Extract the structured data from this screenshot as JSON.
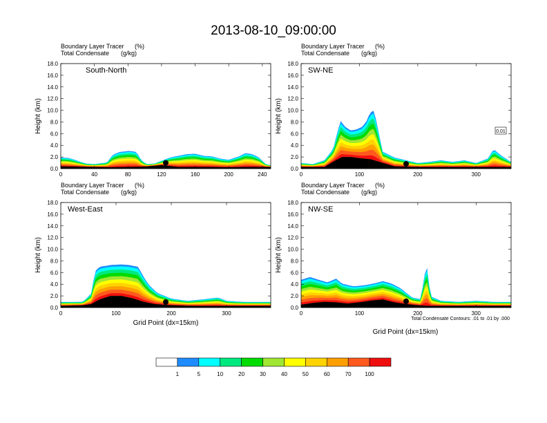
{
  "figure_title": "2013-08-10_09:00:00",
  "field_titles": {
    "tracer": "Boundary Layer Tracer",
    "tracer_unit": "(%)",
    "condensate": "Total Condensate",
    "condensate_unit": "(g/kg)"
  },
  "y_axis_label": "Height (km)",
  "x_axis_label": "Grid Point (dx=15km)",
  "contour_note": "Total Condensate Contours: .01 to .01 by .000",
  "contour_box_label": "0.01",
  "colorbar": {
    "colors": [
      "#ffffff",
      "#1e8cff",
      "#00ffff",
      "#00e97f",
      "#00dc00",
      "#a0e632",
      "#ffff00",
      "#ffd300",
      "#ffa000",
      "#ff5a1e",
      "#f00f0f"
    ],
    "labels": [
      "1",
      "5",
      "10",
      "20",
      "30",
      "40",
      "50",
      "60",
      "70",
      "100"
    ]
  },
  "chart_data": [
    {
      "type": "heatmap",
      "panel_label": "South-North",
      "xlim": [
        0,
        250
      ],
      "ylim": [
        0,
        18
      ],
      "xticks": [
        "0",
        "40",
        "80",
        "120",
        "160",
        "200",
        "240"
      ],
      "yticks": [
        "0.0",
        "2.0",
        "4.0",
        "6.0",
        "8.0",
        "10.0",
        "12.0",
        "14.0",
        "16.0",
        "18.0"
      ],
      "terrain_km": [
        [
          0,
          0.4
        ],
        [
          20,
          0.35
        ],
        [
          40,
          0.3
        ],
        [
          60,
          0.25
        ],
        [
          80,
          0.3
        ],
        [
          100,
          0.35
        ],
        [
          120,
          0.6
        ],
        [
          140,
          0.3
        ],
        [
          160,
          0.3
        ],
        [
          180,
          0.3
        ],
        [
          200,
          0.25
        ],
        [
          220,
          0.3
        ],
        [
          250,
          0.3
        ]
      ],
      "tracer_top_km": [
        [
          0,
          2.0
        ],
        [
          10,
          1.9
        ],
        [
          20,
          1.4
        ],
        [
          30,
          0.9
        ],
        [
          40,
          0.8
        ],
        [
          55,
          1.1
        ],
        [
          62,
          2.5
        ],
        [
          70,
          3.0
        ],
        [
          82,
          3.2
        ],
        [
          90,
          3.0
        ],
        [
          96,
          1.5
        ],
        [
          102,
          0.8
        ],
        [
          112,
          0.9
        ],
        [
          122,
          1.5
        ],
        [
          130,
          2.0
        ],
        [
          140,
          2.3
        ],
        [
          150,
          2.6
        ],
        [
          160,
          2.7
        ],
        [
          170,
          2.3
        ],
        [
          180,
          2.2
        ],
        [
          190,
          1.8
        ],
        [
          200,
          1.6
        ],
        [
          212,
          2.2
        ],
        [
          220,
          2.8
        ],
        [
          228,
          2.6
        ],
        [
          236,
          2.0
        ],
        [
          244,
          0.8
        ],
        [
          250,
          0.6
        ]
      ],
      "marker_x": 125
    },
    {
      "type": "heatmap",
      "panel_label": "SW-NE",
      "xlim": [
        0,
        360
      ],
      "ylim": [
        0,
        18
      ],
      "xticks": [
        "0",
        "100",
        "200",
        "300"
      ],
      "yticks": [
        "0.0",
        "2.0",
        "4.0",
        "6.0",
        "8.0",
        "10.0",
        "12.0",
        "14.0",
        "16.0",
        "18.0"
      ],
      "terrain_km": [
        [
          0,
          0.3
        ],
        [
          40,
          0.3
        ],
        [
          55,
          1.2
        ],
        [
          70,
          2.0
        ],
        [
          85,
          2.0
        ],
        [
          100,
          1.8
        ],
        [
          120,
          1.6
        ],
        [
          140,
          1.0
        ],
        [
          160,
          0.4
        ],
        [
          200,
          0.3
        ],
        [
          240,
          0.3
        ],
        [
          280,
          0.3
        ],
        [
          300,
          0.3
        ],
        [
          330,
          0.3
        ],
        [
          360,
          0.3
        ]
      ],
      "tracer_top_km": [
        [
          0,
          1.0
        ],
        [
          20,
          0.8
        ],
        [
          40,
          1.5
        ],
        [
          55,
          3.5
        ],
        [
          62,
          6.5
        ],
        [
          68,
          8.5
        ],
        [
          75,
          7.5
        ],
        [
          85,
          6.8
        ],
        [
          95,
          7.0
        ],
        [
          105,
          7.5
        ],
        [
          112,
          8.5
        ],
        [
          118,
          10.0
        ],
        [
          125,
          10.5
        ],
        [
          130,
          8.0
        ],
        [
          140,
          3.0
        ],
        [
          160,
          2.0
        ],
        [
          180,
          1.5
        ],
        [
          200,
          1.0
        ],
        [
          220,
          1.2
        ],
        [
          240,
          1.5
        ],
        [
          260,
          1.2
        ],
        [
          280,
          1.5
        ],
        [
          300,
          1.0
        ],
        [
          320,
          1.8
        ],
        [
          330,
          3.5
        ],
        [
          345,
          2.2
        ],
        [
          360,
          1.2
        ]
      ],
      "marker_x": 180
    },
    {
      "type": "heatmap",
      "panel_label": "West-East",
      "xlim": [
        0,
        380
      ],
      "ylim": [
        0,
        18
      ],
      "xticks": [
        "0",
        "100",
        "200",
        "300"
      ],
      "yticks": [
        "0.0",
        "2.0",
        "4.0",
        "6.0",
        "8.0",
        "10.0",
        "12.0",
        "14.0",
        "16.0",
        "18.0"
      ],
      "terrain_km": [
        [
          0,
          0.3
        ],
        [
          40,
          0.4
        ],
        [
          55,
          0.6
        ],
        [
          70,
          1.4
        ],
        [
          90,
          2.0
        ],
        [
          110,
          2.0
        ],
        [
          130,
          1.6
        ],
        [
          150,
          1.0
        ],
        [
          170,
          0.6
        ],
        [
          200,
          0.4
        ],
        [
          240,
          0.3
        ],
        [
          300,
          0.3
        ],
        [
          380,
          0.3
        ]
      ],
      "tracer_top_km": [
        [
          0,
          1.0
        ],
        [
          40,
          1.0
        ],
        [
          55,
          2.5
        ],
        [
          62,
          6.5
        ],
        [
          70,
          7.3
        ],
        [
          90,
          7.6
        ],
        [
          110,
          7.7
        ],
        [
          125,
          7.6
        ],
        [
          140,
          7.3
        ],
        [
          150,
          5.5
        ],
        [
          160,
          4.0
        ],
        [
          175,
          2.6
        ],
        [
          200,
          1.6
        ],
        [
          230,
          1.2
        ],
        [
          260,
          1.5
        ],
        [
          285,
          1.8
        ],
        [
          300,
          1.2
        ],
        [
          330,
          1.0
        ],
        [
          380,
          1.0
        ]
      ],
      "marker_x": 190
    },
    {
      "type": "heatmap",
      "panel_label": "NW-SE",
      "xlim": [
        0,
        360
      ],
      "ylim": [
        0,
        18
      ],
      "xticks": [
        "0",
        "100",
        "200",
        "300"
      ],
      "yticks": [
        "0.0",
        "2.0",
        "4.0",
        "6.0",
        "8.0",
        "10.0",
        "12.0",
        "14.0",
        "16.0",
        "18.0"
      ],
      "terrain_km": [
        [
          0,
          0.5
        ],
        [
          20,
          0.8
        ],
        [
          40,
          1.0
        ],
        [
          60,
          0.9
        ],
        [
          80,
          0.7
        ],
        [
          100,
          0.9
        ],
        [
          120,
          1.2
        ],
        [
          140,
          1.4
        ],
        [
          160,
          0.9
        ],
        [
          180,
          0.6
        ],
        [
          200,
          0.4
        ],
        [
          220,
          0.3
        ],
        [
          250,
          0.3
        ],
        [
          300,
          0.3
        ],
        [
          360,
          0.3
        ]
      ],
      "tracer_top_km": [
        [
          0,
          5.0
        ],
        [
          15,
          5.5
        ],
        [
          30,
          5.0
        ],
        [
          45,
          4.5
        ],
        [
          60,
          5.2
        ],
        [
          70,
          4.3
        ],
        [
          90,
          3.8
        ],
        [
          110,
          4.0
        ],
        [
          125,
          4.3
        ],
        [
          140,
          4.7
        ],
        [
          155,
          4.3
        ],
        [
          170,
          3.5
        ],
        [
          190,
          1.8
        ],
        [
          205,
          1.5
        ],
        [
          215,
          8.0
        ],
        [
          222,
          2.0
        ],
        [
          240,
          1.2
        ],
        [
          270,
          1.0
        ],
        [
          300,
          1.2
        ],
        [
          330,
          1.0
        ],
        [
          360,
          1.0
        ]
      ],
      "marker_x": 180
    }
  ]
}
